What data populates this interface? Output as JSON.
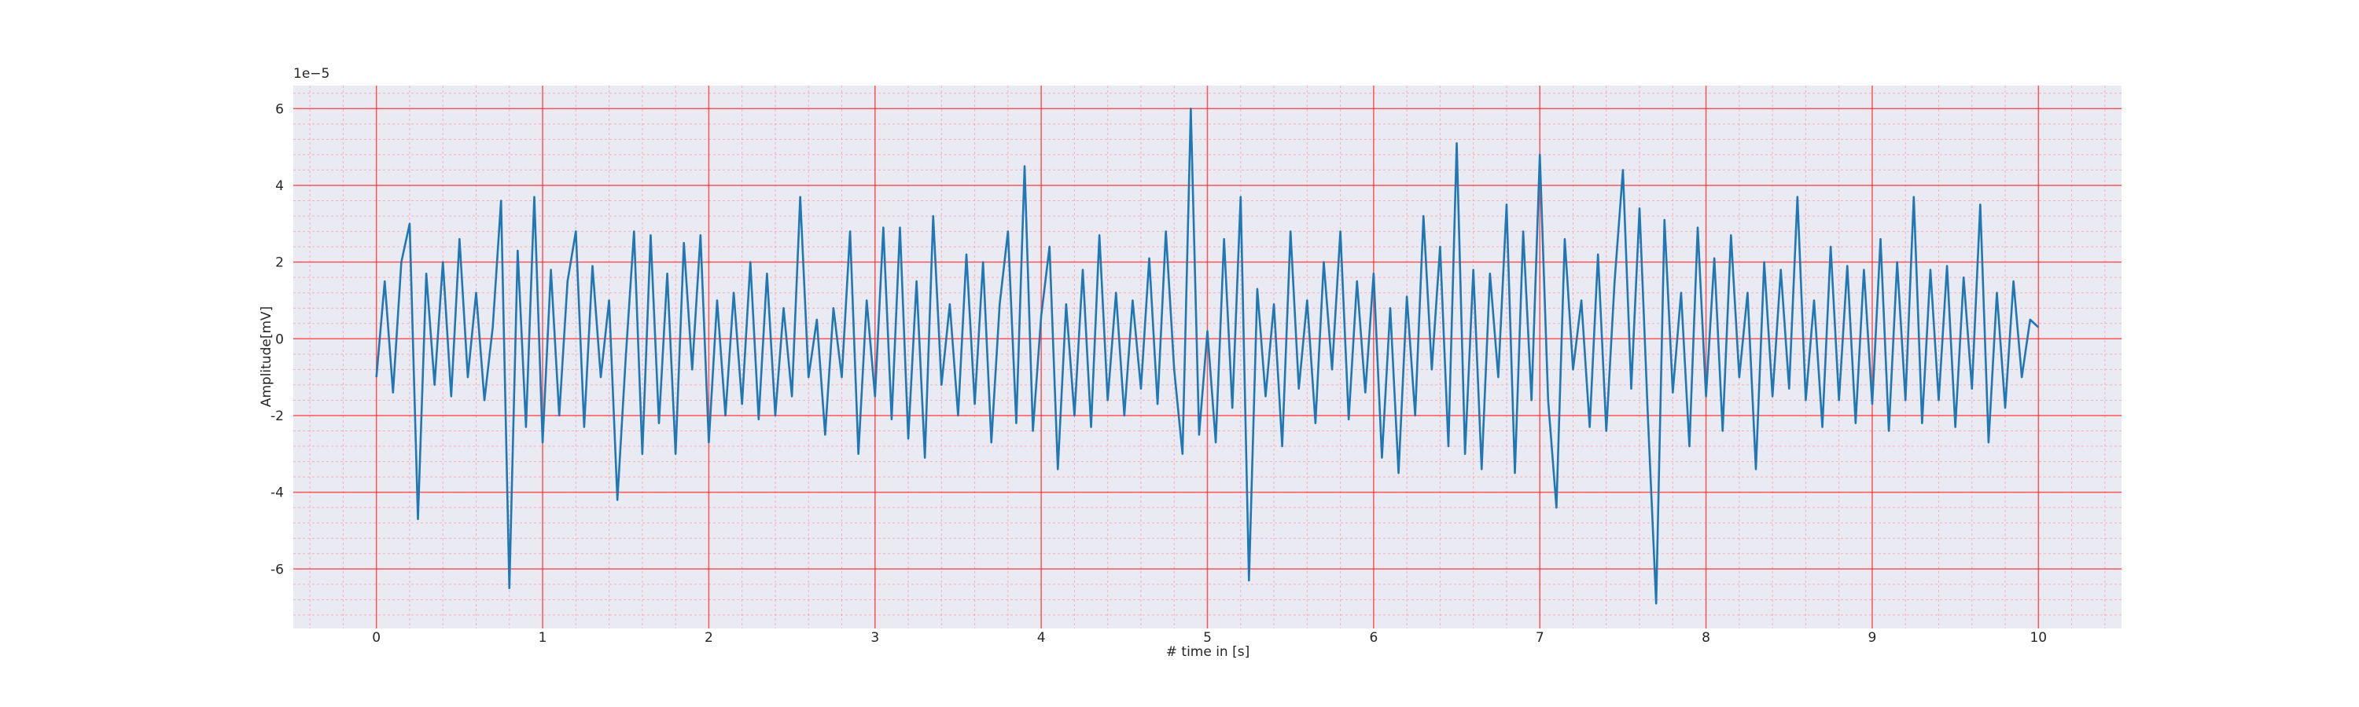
{
  "chart_data": {
    "type": "line",
    "xlabel": "# time in [s]",
    "ylabel": "Amplitude[mV]",
    "offset_label": "1e−5",
    "color": "#1f77b4",
    "xlim": [
      -0.5,
      10.5
    ],
    "ylim": [
      -7.55,
      6.6
    ],
    "xticks": [
      0,
      1,
      2,
      3,
      4,
      5,
      6,
      7,
      8,
      9,
      10
    ],
    "yticks": [
      -6,
      -4,
      -2,
      0,
      2,
      4,
      6
    ],
    "grid": true,
    "minor_grid": true,
    "x": [
      0,
      0.05,
      0.1,
      0.15,
      0.2,
      0.25,
      0.3,
      0.35,
      0.4,
      0.45,
      0.5,
      0.55,
      0.6,
      0.65,
      0.7,
      0.75,
      0.8,
      0.85,
      0.9,
      0.95,
      1,
      1.05,
      1.1,
      1.15,
      1.2,
      1.25,
      1.3,
      1.35,
      1.4,
      1.45,
      1.5,
      1.55,
      1.6,
      1.65,
      1.7,
      1.75,
      1.8,
      1.85,
      1.9,
      1.95,
      2,
      2.05,
      2.1,
      2.15,
      2.2,
      2.25,
      2.3,
      2.35,
      2.4,
      2.45,
      2.5,
      2.55,
      2.6,
      2.65,
      2.7,
      2.75,
      2.8,
      2.85,
      2.9,
      2.95,
      3,
      3.05,
      3.1,
      3.15,
      3.2,
      3.25,
      3.3,
      3.35,
      3.4,
      3.45,
      3.5,
      3.55,
      3.6,
      3.65,
      3.7,
      3.75,
      3.8,
      3.85,
      3.9,
      3.95,
      4,
      4.05,
      4.1,
      4.15,
      4.2,
      4.25,
      4.3,
      4.35,
      4.4,
      4.45,
      4.5,
      4.55,
      4.6,
      4.65,
      4.7,
      4.75,
      4.8,
      4.85,
      4.9,
      4.95,
      5,
      5.05,
      5.1,
      5.15,
      5.2,
      5.25,
      5.3,
      5.35,
      5.4,
      5.45,
      5.5,
      5.55,
      5.6,
      5.65,
      5.7,
      5.75,
      5.8,
      5.85,
      5.9,
      5.95,
      6,
      6.05,
      6.1,
      6.15,
      6.2,
      6.25,
      6.3,
      6.35,
      6.4,
      6.45,
      6.5,
      6.55,
      6.6,
      6.65,
      6.7,
      6.75,
      6.8,
      6.85,
      6.9,
      6.95,
      7,
      7.05,
      7.1,
      7.15,
      7.2,
      7.25,
      7.3,
      7.35,
      7.4,
      7.45,
      7.5,
      7.55,
      7.6,
      7.65,
      7.7,
      7.75,
      7.8,
      7.85,
      7.9,
      7.95,
      8,
      8.05,
      8.1,
      8.15,
      8.2,
      8.25,
      8.3,
      8.35,
      8.4,
      8.45,
      8.5,
      8.55,
      8.6,
      8.65,
      8.7,
      8.75,
      8.8,
      8.85,
      8.9,
      8.95,
      9,
      9.05,
      9.1,
      9.15,
      9.2,
      9.25,
      9.3,
      9.35,
      9.4,
      9.45,
      9.5,
      9.55,
      9.6,
      9.65,
      9.7,
      9.75,
      9.8,
      9.85,
      9.9,
      9.95,
      10
    ],
    "values": [
      -1.0,
      1.5,
      -1.4,
      2.0,
      3.0,
      -4.7,
      1.7,
      -1.2,
      2.0,
      -1.5,
      2.6,
      -1.0,
      1.2,
      -1.6,
      0.3,
      3.6,
      -6.5,
      2.3,
      -2.3,
      3.7,
      -2.7,
      1.8,
      -2.0,
      1.5,
      2.8,
      -2.3,
      1.9,
      -1.0,
      1.0,
      -4.2,
      -0.5,
      2.8,
      -3.0,
      2.7,
      -2.2,
      1.7,
      -3.0,
      2.5,
      -0.8,
      2.7,
      -2.7,
      1.0,
      -2.0,
      1.2,
      -1.7,
      2.0,
      -2.1,
      1.7,
      -2.0,
      0.8,
      -1.5,
      3.7,
      -1.0,
      0.5,
      -2.5,
      0.8,
      -1.0,
      2.8,
      -3.0,
      1.0,
      -1.5,
      2.9,
      -2.1,
      2.9,
      -2.6,
      1.5,
      -3.1,
      3.2,
      -1.2,
      0.9,
      -2.0,
      2.2,
      -1.7,
      2.0,
      -2.7,
      0.9,
      2.8,
      -2.2,
      4.5,
      -2.4,
      0.6,
      2.4,
      -3.4,
      0.9,
      -2.0,
      1.8,
      -2.3,
      2.7,
      -1.6,
      1.2,
      -2.0,
      1.0,
      -1.3,
      2.1,
      -1.7,
      2.8,
      -0.8,
      -3.0,
      6.0,
      -2.5,
      0.2,
      -2.7,
      2.6,
      -1.8,
      3.7,
      -6.3,
      1.3,
      -1.5,
      0.9,
      -2.8,
      2.8,
      -1.3,
      1.0,
      -2.2,
      2.0,
      -0.8,
      2.8,
      -2.1,
      1.5,
      -1.4,
      1.7,
      -3.1,
      0.8,
      -3.5,
      1.1,
      -2.0,
      3.2,
      -0.8,
      2.4,
      -2.8,
      5.1,
      -3.0,
      1.8,
      -3.4,
      1.7,
      -1.0,
      3.5,
      -3.5,
      2.8,
      -1.6,
      4.8,
      -1.6,
      -4.4,
      2.6,
      -0.8,
      1.0,
      -2.3,
      2.2,
      -2.4,
      1.5,
      4.4,
      -1.3,
      3.4,
      -2.0,
      -6.9,
      3.1,
      -1.4,
      1.2,
      -2.8,
      2.9,
      -1.5,
      2.1,
      -2.4,
      2.7,
      -1.0,
      1.2,
      -3.4,
      2.0,
      -1.5,
      1.8,
      -1.3,
      3.7,
      -1.6,
      1.0,
      -2.3,
      2.4,
      -1.6,
      1.9,
      -2.2,
      1.8,
      -1.7,
      2.6,
      -2.4,
      2.0,
      -1.6,
      3.7,
      -2.2,
      1.8,
      -1.6,
      1.9,
      -2.3,
      1.6,
      -1.3,
      3.5,
      -2.7,
      1.2,
      -1.8,
      1.5,
      -1.0,
      0.5,
      0.3
    ]
  }
}
